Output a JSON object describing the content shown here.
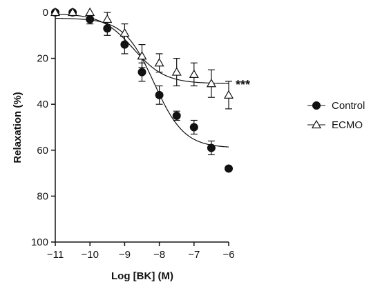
{
  "chart_data": {
    "type": "scatter",
    "title": "",
    "xlabel": "Log [BK] (M)",
    "ylabel": "Relaxation (%)",
    "xlim": [
      -11,
      -6
    ],
    "ylim": [
      0,
      100
    ],
    "y_inverted": true,
    "xticks": [
      -11,
      -10,
      -9,
      -8,
      -7,
      -6
    ],
    "yticks": [
      0,
      20,
      40,
      60,
      80,
      100
    ],
    "xtick_labels": [
      "−11",
      "−10",
      "−9",
      "−8",
      "−7",
      "−6"
    ],
    "ytick_labels": [
      "0",
      "20",
      "40",
      "60",
      "80",
      "100"
    ],
    "grid": false,
    "legend_position": "right",
    "annotation": {
      "text": "***",
      "x": -6,
      "y": 31
    },
    "series": [
      {
        "name": "Control",
        "marker": "filled-circle",
        "x": [
          -11,
          -10.5,
          -10,
          -9.5,
          -9,
          -8.5,
          -8,
          -7.5,
          -7,
          -6.5,
          -6
        ],
        "y": [
          0,
          0,
          3,
          7,
          14,
          26,
          36,
          45,
          50,
          59,
          68
        ],
        "err": [
          0,
          0,
          2,
          3,
          4,
          4,
          4,
          2,
          3,
          3,
          0
        ],
        "fit": {
          "bottom": 2.5,
          "top": 59,
          "logEC50": -8.15,
          "hill": 1.0
        }
      },
      {
        "name": "ECMO",
        "marker": "open-triangle",
        "x": [
          -11,
          -10.5,
          -10,
          -9.5,
          -9,
          -8.5,
          -8,
          -7.5,
          -7,
          -6.5,
          -6
        ],
        "y": [
          0,
          0,
          0,
          3,
          9,
          19,
          22,
          26,
          27,
          31,
          36
        ],
        "err": [
          0,
          0,
          0,
          3,
          4,
          5,
          4,
          6,
          5,
          6,
          6
        ],
        "fit": {
          "bottom": 0.5,
          "top": 31,
          "logEC50": -8.75,
          "hill": 0.95
        }
      }
    ]
  }
}
